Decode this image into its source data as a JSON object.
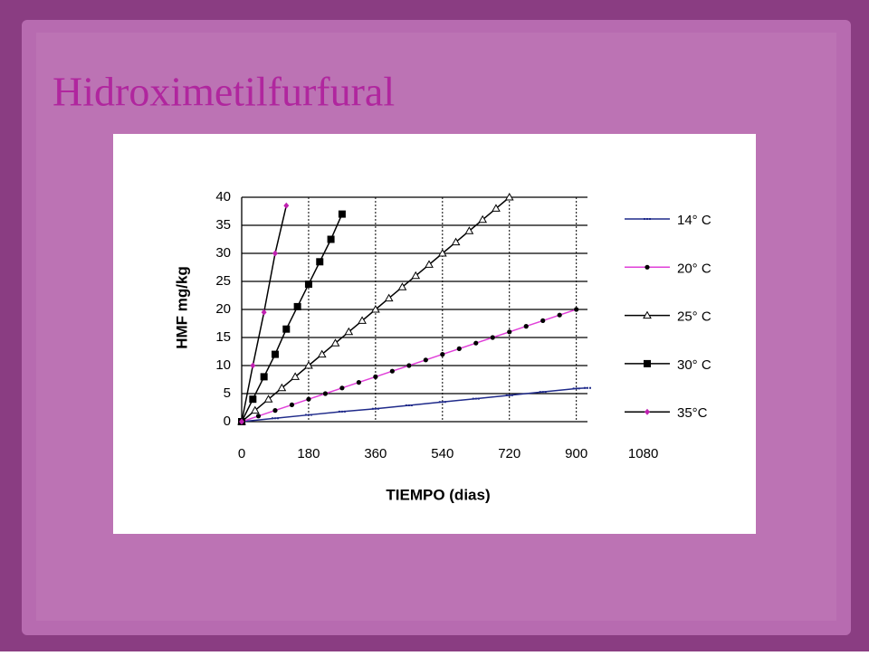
{
  "chart_data": {
    "type": "line",
    "title": "Hidroximetilfurfural",
    "x_label": "TIEMPO (dias)",
    "y_label": "HMF mg/kg",
    "xlim": [
      0,
      930
    ],
    "xticks": [
      0,
      180,
      360,
      540,
      720,
      900,
      1080
    ],
    "ylim": [
      0,
      40
    ],
    "yticks": [
      0,
      5,
      10,
      15,
      20,
      25,
      30,
      35,
      40
    ],
    "grid": true,
    "legend": "right",
    "series": [
      {
        "name": "14° C",
        "color": "#1f2a8a",
        "marker": "dash",
        "marker_color": "#1f2a8a",
        "x": [
          0,
          90,
          180,
          270,
          360,
          450,
          540,
          630,
          720,
          810,
          900,
          930
        ],
        "values": [
          0,
          0.6,
          1.2,
          1.8,
          2.3,
          2.9,
          3.5,
          4.1,
          4.7,
          5.3,
          5.9,
          6.0
        ]
      },
      {
        "name": "20° C",
        "color": "#e040d8",
        "marker": "circle",
        "marker_color": "#000000",
        "x": [
          0,
          45,
          90,
          135,
          180,
          225,
          270,
          315,
          360,
          405,
          450,
          495,
          540,
          585,
          630,
          675,
          720,
          765,
          810,
          855,
          900
        ],
        "values": [
          0,
          1,
          2,
          3,
          4,
          5,
          6,
          7,
          8,
          9,
          10,
          11,
          12,
          13,
          14,
          15,
          16,
          17,
          18,
          19,
          20
        ]
      },
      {
        "name": "25° C",
        "color": "#000000",
        "marker": "triangle",
        "marker_color": "#000000",
        "x": [
          0,
          36,
          72,
          108,
          144,
          180,
          216,
          252,
          288,
          324,
          360,
          396,
          432,
          468,
          504,
          540,
          576,
          612,
          648,
          684,
          720
        ],
        "values": [
          0,
          2,
          4,
          6,
          8,
          10,
          12,
          14,
          16,
          18,
          20,
          22,
          24,
          26,
          28,
          30,
          32,
          34,
          36,
          38,
          40
        ]
      },
      {
        "name": "30° C",
        "color": "#000000",
        "marker": "square",
        "marker_color": "#000000",
        "x": [
          0,
          30,
          60,
          90,
          120,
          150,
          180,
          210,
          240,
          270
        ],
        "values": [
          0,
          4,
          8,
          12,
          16.5,
          20.5,
          24.5,
          28.5,
          32.5,
          37
        ]
      },
      {
        "name": "35°C",
        "color": "#000000",
        "marker": "diamond",
        "marker_color": "#c020b0",
        "x": [
          0,
          30,
          60,
          90,
          120
        ],
        "values": [
          0,
          10,
          19.5,
          30,
          38.5
        ]
      }
    ]
  }
}
